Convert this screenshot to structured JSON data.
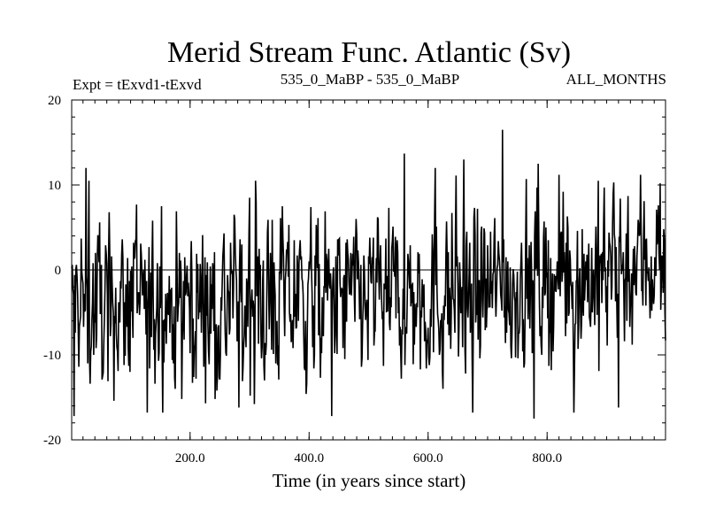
{
  "chart_data": {
    "type": "line",
    "title": "Merid Stream Func. Atlantic (Sv)",
    "experiment_label": "Expt = tExvd1-tExvd",
    "period_label": "535_0_MaBP - 535_0_MaBP",
    "season_label": "ALL_MONTHS",
    "xlabel": "Time (in years since start)",
    "ylabel": "",
    "xlim": [
      1,
      999
    ],
    "ylim": [
      -20,
      20
    ],
    "x_ticks": [
      {
        "value": 200,
        "label": "200.0"
      },
      {
        "value": 400,
        "label": "400.0"
      },
      {
        "value": 600,
        "label": "600.0"
      },
      {
        "value": 800,
        "label": "800.0"
      }
    ],
    "x_minor_step": 20,
    "y_ticks": [
      {
        "value": 20,
        "label": "20"
      },
      {
        "value": 10,
        "label": "10"
      },
      {
        "value": 0,
        "label": "0"
      },
      {
        "value": -10,
        "label": "-10"
      },
      {
        "value": -20,
        "label": "-20"
      }
    ],
    "y_minor_step": 2,
    "reference_line": 0,
    "series": [
      {
        "name": "Merid Stream Func. Atlantic",
        "x_start": 1,
        "x_step": 1,
        "values": []
      }
    ],
    "series_note": "Noisy annual series, mean ~ -4 Sv in first half rising to ~ +1 Sv near the end; extremes about +16.5 Sv (year ~725) and -17.5 Sv (year ~778).",
    "anchor_points": [
      {
        "x": 5,
        "y": -17.2
      },
      {
        "x": 25,
        "y": 12.0
      },
      {
        "x": 30,
        "y": 10.5
      },
      {
        "x": 110,
        "y": 7.7
      },
      {
        "x": 128,
        "y": -16.8
      },
      {
        "x": 282,
        "y": -16.2
      },
      {
        "x": 300,
        "y": 8.5
      },
      {
        "x": 438,
        "y": -17.2
      },
      {
        "x": 560,
        "y": 13.7
      },
      {
        "x": 612,
        "y": 12.0
      },
      {
        "x": 660,
        "y": 13.0
      },
      {
        "x": 725,
        "y": 16.5
      },
      {
        "x": 778,
        "y": -17.5
      },
      {
        "x": 785,
        "y": 12.5
      },
      {
        "x": 920,
        "y": -16.2
      },
      {
        "x": 990,
        "y": 10.2
      }
    ]
  }
}
